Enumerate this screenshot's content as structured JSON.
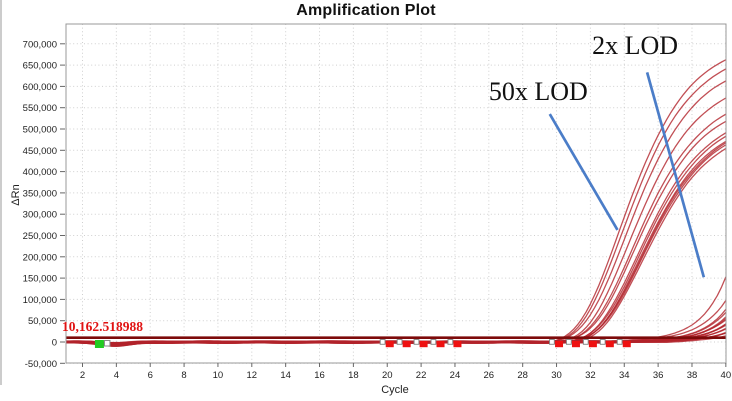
{
  "figure": {
    "title": "Amplification Plot"
  },
  "colors": {
    "curve": "#b2232a",
    "threshold_line": "#7d0a0a",
    "threshold_text": "#e01212",
    "callout_line": "#4b7dc8",
    "grid": "#cfcfcf",
    "border": "#999999",
    "tick": "#666666",
    "tick_text": "#222222",
    "green_marker": "#22cc22",
    "red_marker": "#ee1111",
    "marker_box_stroke": "#8a8a8a"
  },
  "chart_data": {
    "type": "line",
    "title": "Amplification Plot",
    "xlabel": "Cycle",
    "ylabel": "ΔRn",
    "xlim": [
      1,
      40
    ],
    "ylim": [
      -55000,
      750000
    ],
    "grid": true,
    "legend": "none",
    "x_ticks": [
      2,
      4,
      6,
      8,
      10,
      12,
      14,
      16,
      18,
      20,
      22,
      24,
      26,
      28,
      30,
      32,
      34,
      36,
      38,
      40
    ],
    "x_tick_labels": [
      "2",
      "4",
      "6",
      "8",
      "10",
      "12",
      "14",
      "16",
      "18",
      "20",
      "22",
      "24",
      "26",
      "28",
      "30",
      "32",
      "34",
      "36",
      "38",
      "40"
    ],
    "y_ticks": [
      -50000,
      0,
      50000,
      100000,
      150000,
      200000,
      250000,
      300000,
      350000,
      400000,
      450000,
      500000,
      550000,
      600000,
      650000,
      700000
    ],
    "y_tick_labels": [
      "-50,000",
      "0",
      "50,000",
      "100,000",
      "150,000",
      "200,000",
      "250,000",
      "300,000",
      "350,000",
      "400,000",
      "450,000",
      "500,000",
      "550,000",
      "600,000",
      "650,000",
      "700,000"
    ],
    "threshold": {
      "value": 10162.518988,
      "label": "10,162.518988"
    },
    "annotations": [
      {
        "text": "2x LOD",
        "label_cycle": 32.1,
        "label_value": 725000,
        "line_from": [
          35.35,
          633000
        ],
        "line_to": [
          38.7,
          152000
        ]
      },
      {
        "text": "50x LOD",
        "label_cycle": 26.0,
        "label_value": 617000,
        "line_from": [
          29.6,
          535000
        ],
        "line_to": [
          33.6,
          263000
        ]
      }
    ],
    "series_model_note": "qPCR sigmoids; each 50x series: end value at cycle 40 plus sigmoid midpoint; each 2x series: end value at cycle 40 plus per-cycle fold rate; baseline ~0 with early-cycle dip near cycle 4",
    "series": [
      {
        "name": "50x LOD rep 1",
        "group": "50x",
        "end_value_cycle_40": 665000,
        "mid": 33.7
      },
      {
        "name": "50x LOD rep 2",
        "group": "50x",
        "end_value_cycle_40": 641000,
        "mid": 33.85
      },
      {
        "name": "50x LOD rep 3",
        "group": "50x",
        "end_value_cycle_40": 612000,
        "mid": 34.05
      },
      {
        "name": "50x LOD rep 4",
        "group": "50x",
        "end_value_cycle_40": 575000,
        "mid": 34.25
      },
      {
        "name": "50x LOD rep 5",
        "group": "50x",
        "end_value_cycle_40": 534000,
        "mid": 34.45
      },
      {
        "name": "50x LOD rep 6",
        "group": "50x",
        "end_value_cycle_40": 516000,
        "mid": 34.55
      },
      {
        "name": "50x LOD rep 7",
        "group": "50x",
        "end_value_cycle_40": 492000,
        "mid": 34.75
      },
      {
        "name": "50x LOD rep 8",
        "group": "50x",
        "end_value_cycle_40": 482000,
        "mid": 34.85
      },
      {
        "name": "50x LOD rep 9",
        "group": "50x",
        "end_value_cycle_40": 474000,
        "mid": 34.9
      },
      {
        "name": "50x LOD rep 10",
        "group": "50x",
        "end_value_cycle_40": 468000,
        "mid": 34.95
      },
      {
        "name": "50x LOD rep 11",
        "group": "50x",
        "end_value_cycle_40": 461000,
        "mid": 35.0
      },
      {
        "name": "50x LOD rep 12",
        "group": "50x",
        "end_value_cycle_40": 456000,
        "mid": 35.05
      },
      {
        "name": "2x LOD rep 1",
        "group": "2x",
        "end_value_cycle_40": 152000,
        "rate": 1.95
      },
      {
        "name": "2x LOD rep 2",
        "group": "2x",
        "end_value_cycle_40": 96000,
        "rate": 1.9
      },
      {
        "name": "2x LOD rep 3",
        "group": "2x",
        "end_value_cycle_40": 78000,
        "rate": 1.9
      },
      {
        "name": "2x LOD rep 4",
        "group": "2x",
        "end_value_cycle_40": 68000,
        "rate": 1.88
      },
      {
        "name": "2x LOD rep 5",
        "group": "2x",
        "end_value_cycle_40": 61000,
        "rate": 1.92
      },
      {
        "name": "2x LOD rep 6",
        "group": "2x",
        "end_value_cycle_40": 55000,
        "rate": 1.9
      },
      {
        "name": "2x LOD rep 7",
        "group": "2x",
        "end_value_cycle_40": 50000,
        "rate": 1.87
      },
      {
        "name": "2x LOD rep 8",
        "group": "2x",
        "end_value_cycle_40": 45000,
        "rate": 1.9
      },
      {
        "name": "2x LOD rep 9",
        "group": "2x",
        "end_value_cycle_40": 41000,
        "rate": 1.93
      },
      {
        "name": "2x LOD rep 10",
        "group": "2x",
        "end_value_cycle_40": 37000,
        "rate": 1.9
      },
      {
        "name": "2x LOD rep 11",
        "group": "2x",
        "end_value_cycle_40": 33000,
        "rate": 1.88
      },
      {
        "name": "2x LOD rep 12",
        "group": "2x",
        "end_value_cycle_40": 29000,
        "rate": 1.91
      },
      {
        "name": "2x LOD rep 13",
        "group": "2x",
        "end_value_cycle_40": 25000,
        "rate": 1.9
      },
      {
        "name": "2x LOD rep 14",
        "group": "2x",
        "end_value_cycle_40": 22000,
        "rate": 1.89
      },
      {
        "name": "2x LOD rep 15",
        "group": "2x",
        "end_value_cycle_40": 19000,
        "rate": 1.92
      },
      {
        "name": "2x LOD rep 16",
        "group": "2x",
        "end_value_cycle_40": 16000,
        "rate": 1.9
      }
    ],
    "markers": {
      "green_square_cycle": 3,
      "red_square_cycles": [
        20,
        21,
        22,
        23,
        24,
        30,
        31,
        32,
        33,
        34
      ]
    }
  }
}
